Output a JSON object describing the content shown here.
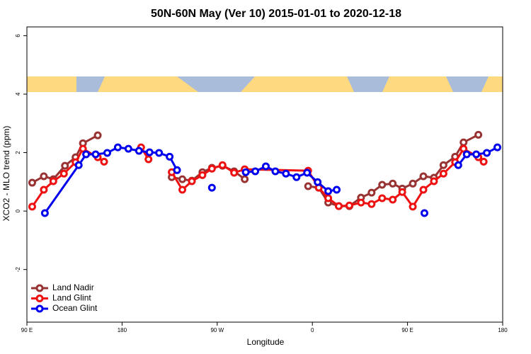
{
  "chart_data": {
    "type": "line",
    "title": "50N-60N May (Ver 10)   2015-01-01 to 2020-12-18",
    "x_label": "Longitude",
    "y_label": "XCO2 - MLO trend (ppm)",
    "xlim": [
      90,
      540
    ],
    "ylim": [
      -3.8,
      6.3
    ],
    "xticks": [
      {
        "value": 90,
        "label": "90 E"
      },
      180,
      {
        "value": 270,
        "label": "90 W"
      },
      {
        "value": 360,
        "label": "0"
      },
      {
        "value": 450,
        "label": "90 E"
      },
      {
        "value": 540,
        "label": "180"
      }
    ],
    "yticks": [
      -2,
      0,
      2,
      4,
      6
    ],
    "legend": "bottom-left",
    "series": [
      {
        "name": "Land Nadir",
        "color": "#993333",
        "x": [
          95,
          106,
          115,
          126,
          136,
          143,
          157,
          null,
          227,
          237,
          246,
          256,
          265,
          275,
          286,
          296,
          null,
          356,
          366,
          375,
          385,
          395,
          406,
          416,
          426,
          436,
          445,
          455,
          465,
          475,
          484,
          495,
          503,
          517
        ],
        "values": [
          0.97,
          1.19,
          1.09,
          1.55,
          1.84,
          2.32,
          2.59,
          null,
          1.16,
          1.09,
          1.04,
          1.33,
          1.48,
          1.55,
          1.36,
          1.09,
          null,
          0.85,
          0.8,
          0.29,
          0.17,
          0.17,
          0.46,
          0.63,
          0.9,
          0.94,
          0.77,
          0.94,
          1.19,
          1.14,
          1.57,
          1.86,
          2.35,
          2.61
        ]
      },
      {
        "name": "Land Glint",
        "color": "#ee1111",
        "x": [
          95,
          106,
          115,
          125,
          136,
          143,
          157,
          163,
          null,
          198,
          205,
          null,
          227,
          237,
          246,
          256,
          265,
          275,
          286,
          296,
          356,
          366,
          375,
          385,
          395,
          406,
          416,
          426,
          436,
          445,
          455,
          465,
          475,
          484,
          495,
          503,
          517,
          522
        ],
        "values": [
          0.15,
          0.73,
          1.02,
          1.28,
          1.67,
          2.13,
          1.84,
          1.69,
          null,
          2.18,
          1.77,
          null,
          1.33,
          0.73,
          1.02,
          1.23,
          1.45,
          1.57,
          1.31,
          1.43,
          1.38,
          0.8,
          0.44,
          0.17,
          0.19,
          0.29,
          0.24,
          0.44,
          0.39,
          0.65,
          0.15,
          0.73,
          1.02,
          1.28,
          1.67,
          2.13,
          1.84,
          1.69
        ]
      },
      {
        "name": "Ocean Glint",
        "color": "#0000ee",
        "x": [
          107,
          139,
          146,
          155,
          166,
          176,
          186,
          196,
          206,
          215,
          225,
          232,
          null,
          265,
          null,
          297,
          306,
          316,
          325,
          335,
          345,
          355,
          365,
          375,
          383,
          null,
          466,
          null,
          498,
          506,
          515,
          525,
          535
        ],
        "values": [
          -0.07,
          1.57,
          1.94,
          1.94,
          1.99,
          2.18,
          2.13,
          2.06,
          2.01,
          1.99,
          1.86,
          1.4,
          null,
          0.8,
          null,
          1.33,
          1.36,
          1.53,
          1.36,
          1.28,
          1.16,
          1.31,
          0.99,
          0.68,
          0.73,
          null,
          -0.07,
          null,
          1.57,
          1.94,
          1.94,
          1.99,
          2.18
        ]
      }
    ]
  }
}
